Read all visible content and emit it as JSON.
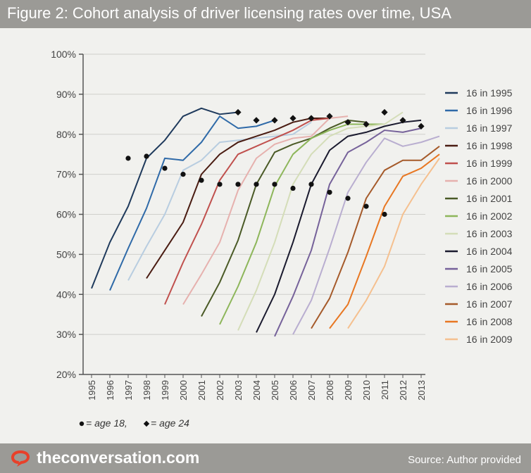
{
  "header": {
    "title": "Figure 2: Cohort analysis of driver licensing rates over time, USA"
  },
  "footer": {
    "brand": "theconversation.com",
    "source": "Source:  Author provided"
  },
  "icons": {
    "logo": "speech-bubble-logo-icon"
  },
  "colors": {
    "bar": "#9b9a96",
    "background": "#f1f1ee"
  },
  "chart_data": {
    "type": "line",
    "title": "Figure 2: Cohort analysis of driver licensing rates over time, USA",
    "x_categories": [
      "1995",
      "1996",
      "1997",
      "1998",
      "1999",
      "2000",
      "2001",
      "2002",
      "2003",
      "2004",
      "2005",
      "2006",
      "2007",
      "2008",
      "2009",
      "2010",
      "2011",
      "2012",
      "2013"
    ],
    "y_tick_labels": [
      "20%",
      "30%",
      "40%",
      "50%",
      "60%",
      "70%",
      "80%",
      "90%",
      "100%"
    ],
    "ylim": [
      20,
      100
    ],
    "y_unit": "%",
    "grid": "horizontal",
    "legend_position": "right",
    "marker_legend": {
      "age18_text": " = age 18,",
      "age24_text": " = age 24"
    },
    "series": [
      {
        "name": "16 in 1995",
        "color": "#1f3a5c",
        "start_year": 1995,
        "values": [
          41.5,
          53,
          62,
          74,
          78.5,
          84.5,
          86.5,
          85,
          85.5
        ]
      },
      {
        "name": "16 in 1996",
        "color": "#2f6aa8",
        "start_year": 1996,
        "values": [
          41,
          51.5,
          61.5,
          74,
          73.5,
          78,
          84.5,
          81.5,
          82,
          83.5
        ]
      },
      {
        "name": "16 in 1997",
        "color": "#b8cde0",
        "start_year": 1997,
        "values": [
          43.5,
          52,
          60,
          71,
          73.5,
          78,
          78.5,
          79,
          79.5,
          80,
          83
        ]
      },
      {
        "name": "16 in 1998",
        "color": "#4a1c12",
        "start_year": 1998,
        "values": [
          44,
          51,
          58,
          70,
          75,
          78,
          79.5,
          81,
          83,
          84,
          84
        ]
      },
      {
        "name": "16 in 1999",
        "color": "#c0504d",
        "start_year": 1999,
        "values": [
          37.5,
          48,
          57.5,
          68.5,
          75,
          77,
          79,
          81,
          83.5,
          84
        ]
      },
      {
        "name": "16 in 2000",
        "color": "#e6b1ae",
        "start_year": 2000,
        "values": [
          37.5,
          45,
          53,
          66,
          74,
          77.5,
          79,
          79.5,
          84,
          84.5
        ]
      },
      {
        "name": "16 in 2001",
        "color": "#4a5a26",
        "start_year": 2001,
        "values": [
          34.5,
          43,
          53.5,
          67.5,
          75.5,
          77.5,
          79,
          81.5,
          83.5,
          83
        ]
      },
      {
        "name": "16 in 2002",
        "color": "#8db65a",
        "start_year": 2002,
        "values": [
          32.5,
          42,
          53,
          67,
          75,
          79,
          81,
          82.5,
          82.5,
          82.5
        ]
      },
      {
        "name": "16 in 2003",
        "color": "#d4ddb8",
        "start_year": 2003,
        "values": [
          31,
          41,
          53,
          67.5,
          75,
          79.5,
          81.5,
          82,
          82.5,
          85.5
        ]
      },
      {
        "name": "16 in 2004",
        "color": "#1a1a2e",
        "start_year": 2004,
        "values": [
          30.5,
          40,
          53,
          67.5,
          76,
          79.5,
          80.5,
          82,
          83,
          83.5
        ]
      },
      {
        "name": "16 in 2005",
        "color": "#76629a",
        "start_year": 2005,
        "values": [
          29.5,
          39.5,
          51,
          67.5,
          75.5,
          78,
          81,
          80.5,
          81.5
        ]
      },
      {
        "name": "16 in 2006",
        "color": "#b9aed0",
        "start_year": 2006,
        "values": [
          30,
          38.5,
          51.5,
          65.5,
          73,
          79,
          77,
          78,
          79.5
        ]
      },
      {
        "name": "16 in 2007",
        "color": "#a55a2a",
        "start_year": 2007,
        "values": [
          31.5,
          39,
          50.5,
          64,
          71,
          73.5,
          73.5,
          77
        ]
      },
      {
        "name": "16 in 2008",
        "color": "#e87722",
        "start_year": 2008,
        "values": [
          31.5,
          37.5,
          49.5,
          62,
          69.5,
          71.5,
          75
        ]
      },
      {
        "name": "16 in 2009",
        "color": "#f5c08f",
        "start_year": 2009,
        "values": [
          31.5,
          38.5,
          47,
          60,
          67.5,
          74
        ]
      }
    ],
    "age18_markers": [
      {
        "x": "1997",
        "y": 74
      },
      {
        "x": "1998",
        "y": 74.5
      },
      {
        "x": "1999",
        "y": 71.5
      },
      {
        "x": "2000",
        "y": 70
      },
      {
        "x": "2001",
        "y": 68.5
      },
      {
        "x": "2002",
        "y": 67.5
      },
      {
        "x": "2003",
        "y": 67.5
      },
      {
        "x": "2004",
        "y": 67.5
      },
      {
        "x": "2005",
        "y": 67.5
      },
      {
        "x": "2006",
        "y": 66.5
      },
      {
        "x": "2007",
        "y": 67.5
      },
      {
        "x": "2008",
        "y": 65.5
      },
      {
        "x": "2009",
        "y": 64
      },
      {
        "x": "2010",
        "y": 62
      },
      {
        "x": "2011",
        "y": 60
      }
    ],
    "age24_markers": [
      {
        "x": "2003",
        "y": 85.5
      },
      {
        "x": "2004",
        "y": 83.5
      },
      {
        "x": "2005",
        "y": 83.5
      },
      {
        "x": "2006",
        "y": 84
      },
      {
        "x": "2007",
        "y": 84
      },
      {
        "x": "2008",
        "y": 84.5
      },
      {
        "x": "2009",
        "y": 83
      },
      {
        "x": "2010",
        "y": 82.5
      },
      {
        "x": "2011",
        "y": 85.5
      },
      {
        "x": "2012",
        "y": 83.5
      },
      {
        "x": "2013",
        "y": 82
      }
    ]
  }
}
